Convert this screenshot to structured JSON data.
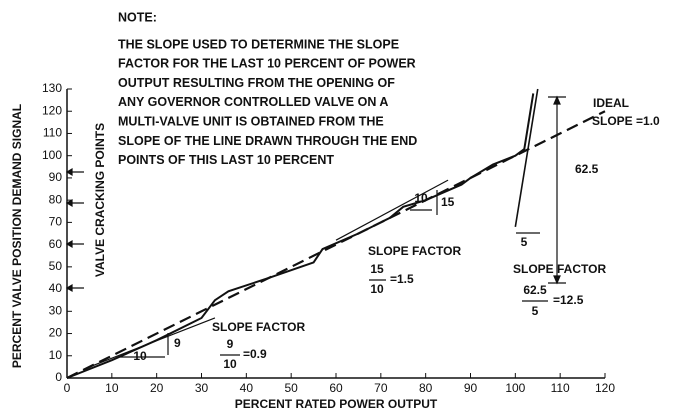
{
  "chart_data": {
    "type": "line",
    "note_title": "NOTE:",
    "note_lines": [
      "THE SLOPE USED TO DETERMINE THE SLOPE",
      "FACTOR FOR THE LAST 10 PERCENT OF POWER",
      "OUTPUT RESULTING FROM THE OPENING OF",
      "ANY GOVERNOR CONTROLLED VALVE ON A",
      "MULTI-VALVE UNIT IS OBTAINED FROM THE",
      "SLOPE OF THE LINE DRAWN THROUGH THE END",
      "POINTS OF THIS LAST 10 PERCENT"
    ],
    "x_label": "PERCENT  RATED POWER OUTPUT",
    "y_label": "PERCENT  VALVE POSITION DEMAND SIGNAL",
    "side_label": "VALVE  CRACKING POINTS",
    "annotations": [
      "IDEAL",
      "SLOPE =1.0",
      "62.5",
      "5",
      "SLOPE FACTOR",
      "62.5",
      "5",
      "=12.5",
      "10",
      "15",
      "SLOPE FACTOR",
      "15",
      "10",
      "=1.5",
      "9",
      "10",
      "SLOPE FACTOR",
      "9",
      "10",
      "=0.9"
    ],
    "xlim": [
      0,
      120
    ],
    "ylim": [
      0,
      130
    ],
    "xticks": [
      0,
      10,
      20,
      30,
      40,
      50,
      60,
      70,
      80,
      90,
      100,
      110,
      120
    ],
    "yticks": [
      0,
      10,
      20,
      30,
      40,
      50,
      60,
      70,
      80,
      90,
      100,
      110,
      120,
      130
    ],
    "series": [
      {
        "color": "#111",
        "dashed": true,
        "width": 2.2,
        "x": [
          0,
          120
        ],
        "values": [
          0,
          120
        ]
      },
      {
        "color": "#111",
        "dashed": false,
        "width": 2,
        "x": [
          0,
          10,
          20,
          30,
          33,
          36,
          45,
          55,
          57,
          65,
          72,
          75,
          80,
          88,
          90,
          95,
          100,
          102,
          104
        ],
        "values": [
          0,
          8,
          17,
          27,
          35,
          39,
          45,
          52,
          58,
          65,
          72,
          77,
          80,
          87,
          90,
          96,
          100,
          103,
          128
        ]
      },
      {
        "color": "#111",
        "dashed": false,
        "width": 1.2,
        "x": [
          5,
          33
        ],
        "values": [
          5,
          27
        ]
      },
      {
        "color": "#111",
        "dashed": false,
        "width": 1.2,
        "x": [
          60,
          85
        ],
        "values": [
          62,
          89
        ]
      },
      {
        "color": "#111",
        "dashed": false,
        "width": 1.6,
        "x": [
          100,
          105
        ],
        "values": [
          68,
          130
        ]
      }
    ]
  }
}
